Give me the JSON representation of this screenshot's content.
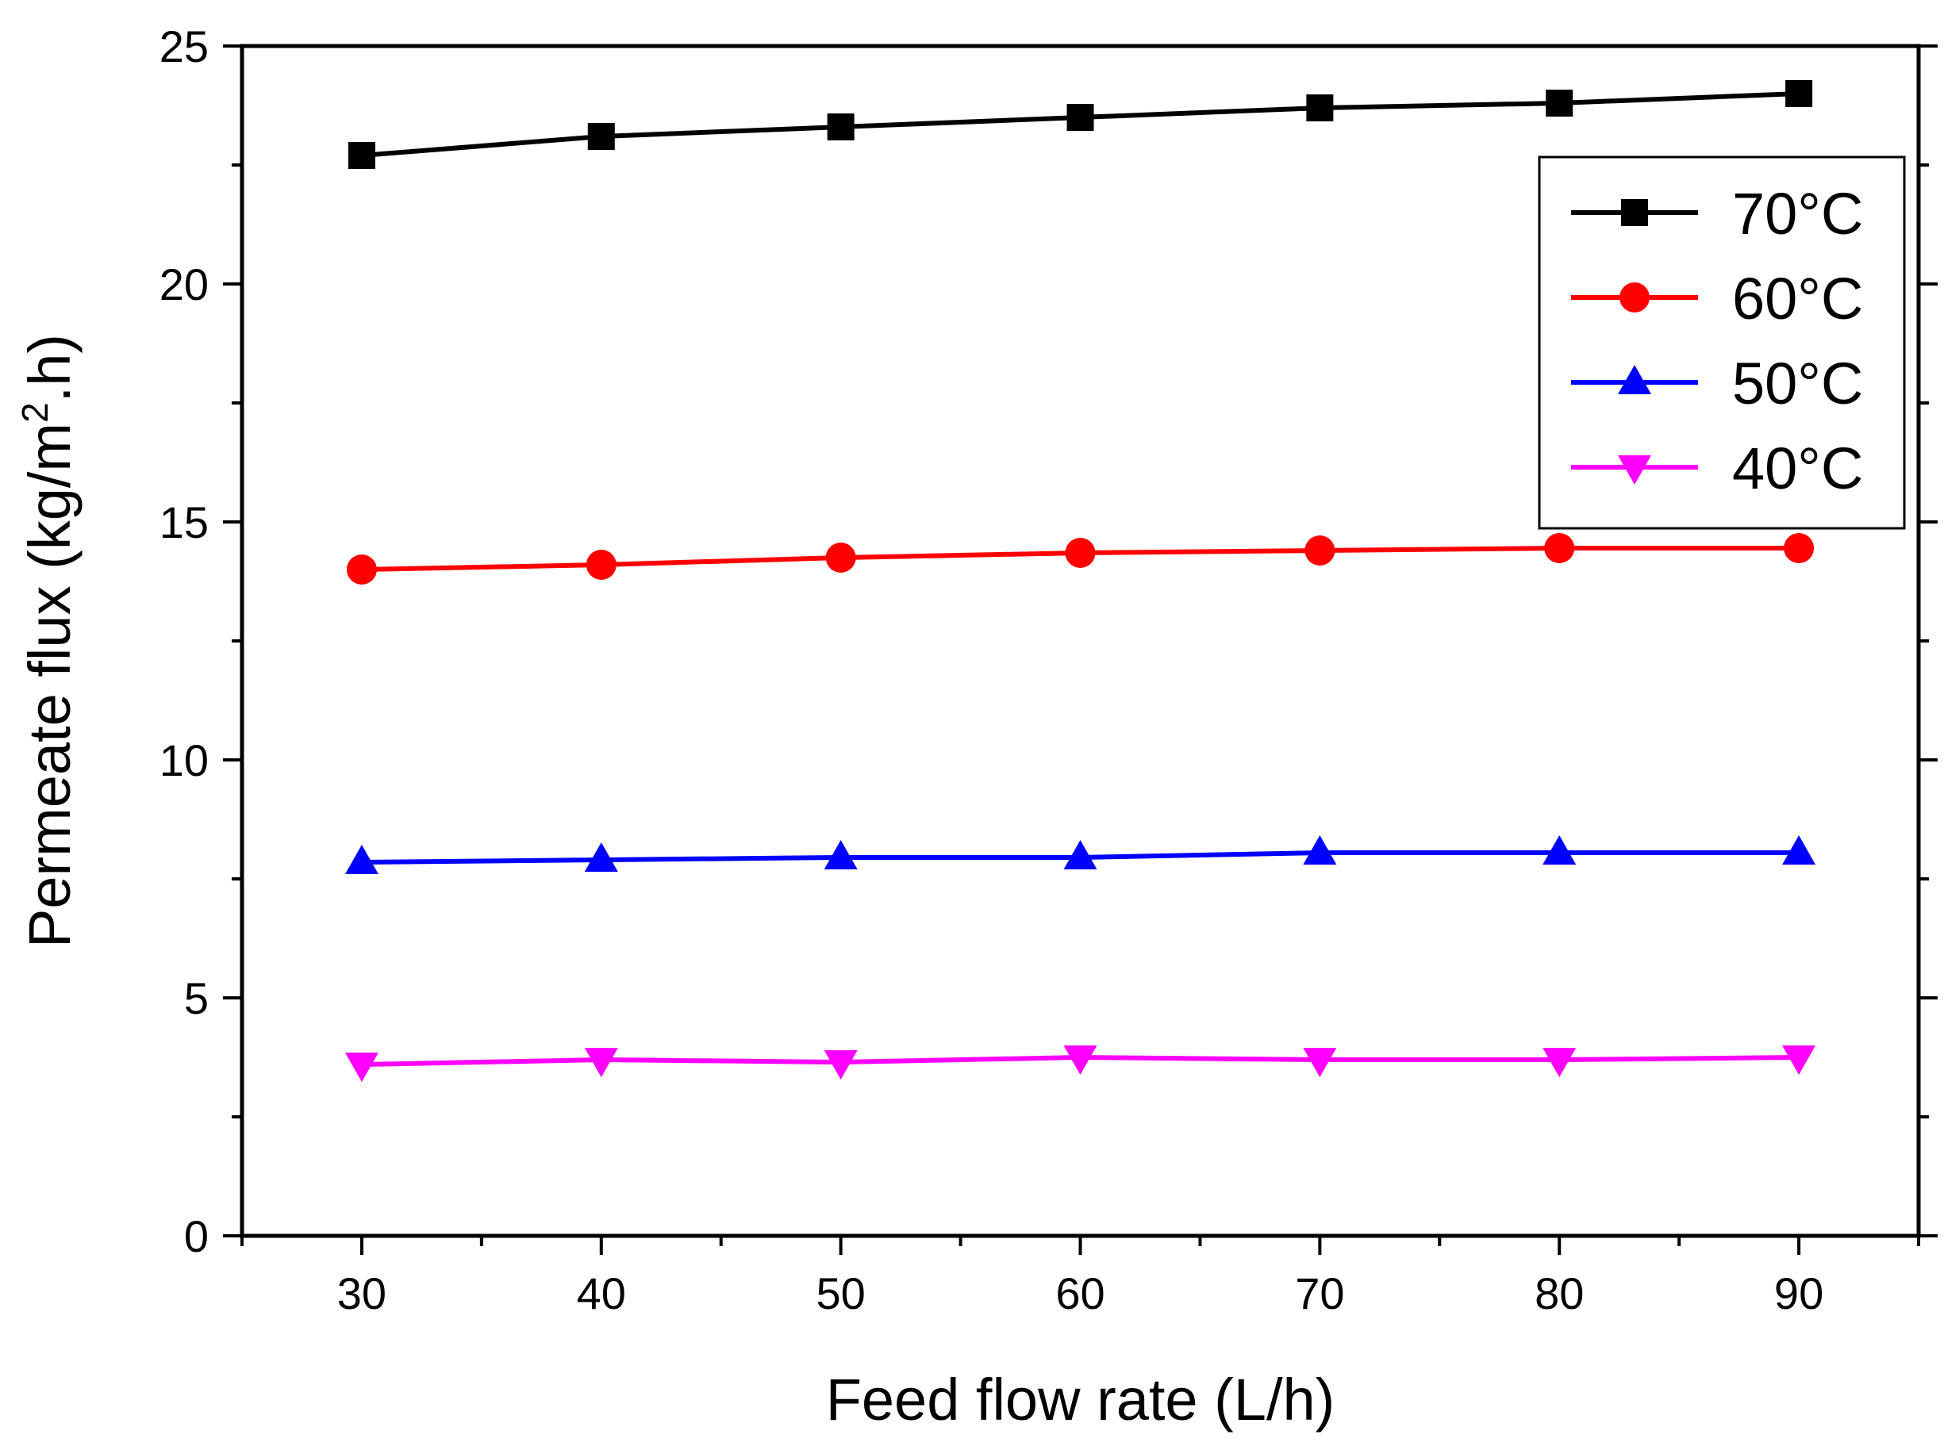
{
  "chart_data": {
    "type": "line",
    "title": "",
    "xlabel": "Feed flow rate (L/h)",
    "ylabel": "Permeate flux (kg/m2.h)",
    "ylabel_parts": {
      "before": "Permeate flux (kg/m",
      "sup": "2",
      "after": ".h)"
    },
    "xlim": [
      25,
      95
    ],
    "ylim": [
      0,
      25
    ],
    "x_ticks": [
      30,
      40,
      50,
      60,
      70,
      80,
      90
    ],
    "x_tick_labels": [
      "30",
      "40",
      "50",
      "60",
      "70",
      "80",
      "90"
    ],
    "y_ticks": [
      0,
      5,
      10,
      15,
      20,
      25
    ],
    "y_tick_labels": [
      "0",
      "5",
      "10",
      "15",
      "20",
      "25"
    ],
    "x": [
      30,
      40,
      50,
      60,
      70,
      80,
      90
    ],
    "legend_position": "upper-right",
    "series": [
      {
        "name": "70°C",
        "color": "#000000",
        "marker": "square",
        "values": [
          22.7,
          23.1,
          23.3,
          23.5,
          23.7,
          23.8,
          24.0
        ]
      },
      {
        "name": "60°C",
        "color": "#ff0000",
        "marker": "circle",
        "values": [
          14.0,
          14.1,
          14.25,
          14.35,
          14.4,
          14.45,
          14.45
        ]
      },
      {
        "name": "50°C",
        "color": "#0000ff",
        "marker": "triangle-up",
        "values": [
          7.85,
          7.9,
          7.95,
          7.95,
          8.05,
          8.05,
          8.05
        ]
      },
      {
        "name": "40°C",
        "color": "#ff00ff",
        "marker": "triangle-down",
        "values": [
          3.6,
          3.7,
          3.65,
          3.75,
          3.7,
          3.7,
          3.75
        ]
      }
    ]
  }
}
